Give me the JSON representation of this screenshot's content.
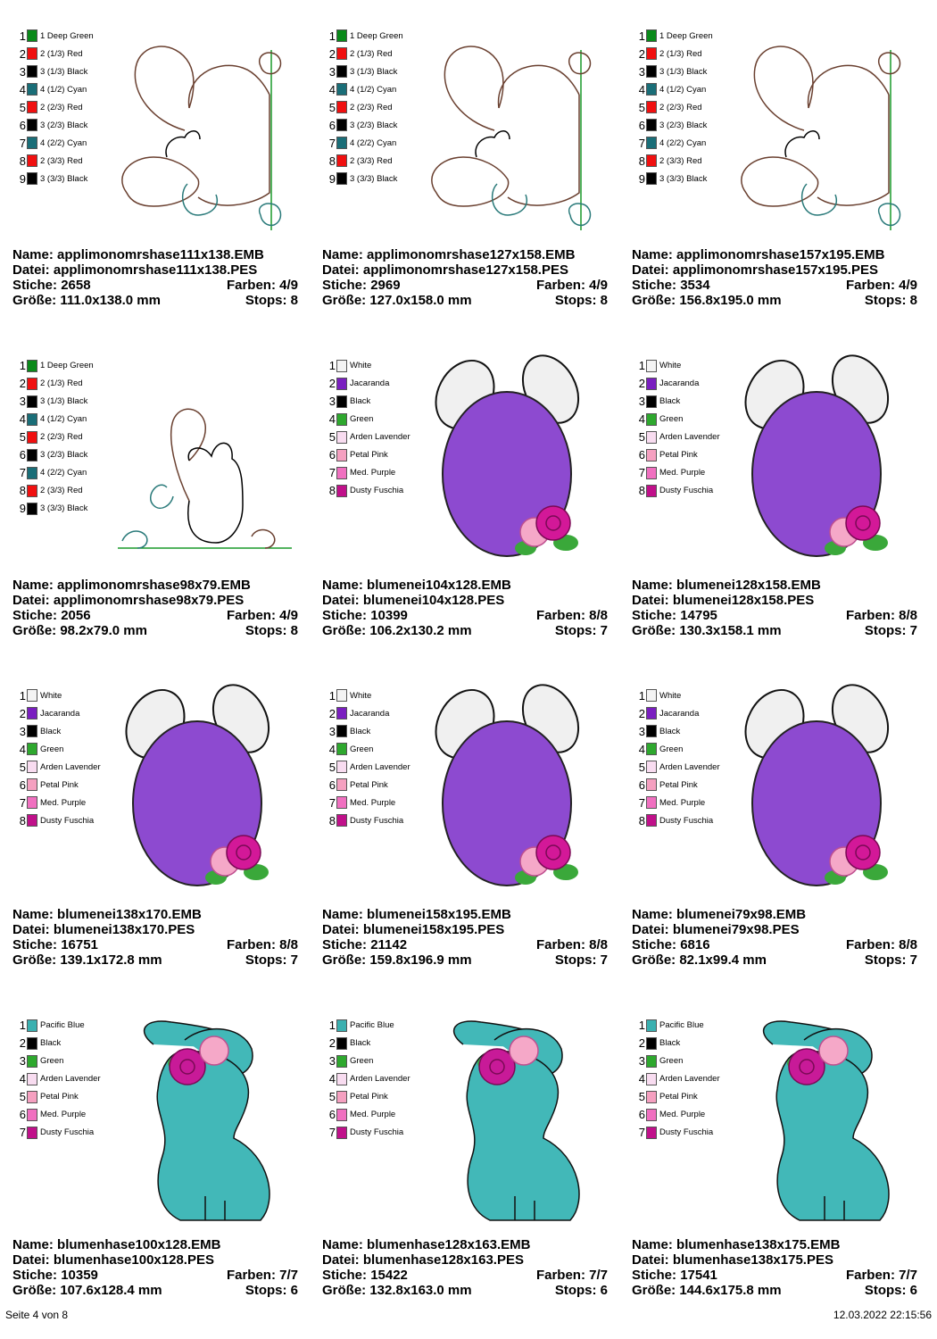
{
  "labels": {
    "name": "Name:",
    "file": "Datei:",
    "stitches": "Stiche:",
    "colors": "Farben:",
    "size": "Größe:",
    "stops": "Stops:"
  },
  "palettes": {
    "hase": [
      {
        "num": "1",
        "label": "1 Deep Green",
        "color": "#0a8a1a"
      },
      {
        "num": "2",
        "label": "2 (1/3) Red",
        "color": "#f01010"
      },
      {
        "num": "3",
        "label": "3 (1/3) Black",
        "color": "#000000"
      },
      {
        "num": "4",
        "label": "4 (1/2) Cyan",
        "color": "#1a6e78"
      },
      {
        "num": "5",
        "label": "2 (2/3) Red",
        "color": "#f01010"
      },
      {
        "num": "6",
        "label": "3 (2/3) Black",
        "color": "#000000"
      },
      {
        "num": "7",
        "label": "4 (2/2) Cyan",
        "color": "#1a6e78"
      },
      {
        "num": "8",
        "label": "2 (3/3) Red",
        "color": "#f01010"
      },
      {
        "num": "9",
        "label": "3 (3/3) Black",
        "color": "#000000"
      }
    ],
    "ei": [
      {
        "num": "1",
        "label": "White",
        "color": "#f4f4f4"
      },
      {
        "num": "2",
        "label": "Jacaranda",
        "color": "#7a1fc0"
      },
      {
        "num": "3",
        "label": "Black",
        "color": "#000000"
      },
      {
        "num": "4",
        "label": "Green",
        "color": "#2ea82e"
      },
      {
        "num": "5",
        "label": "Arden Lavender",
        "color": "#f8dcf0"
      },
      {
        "num": "6",
        "label": "Petal Pink",
        "color": "#f5a0c0"
      },
      {
        "num": "7",
        "label": "Med. Purple",
        "color": "#f070c0"
      },
      {
        "num": "8",
        "label": "Dusty Fuschia",
        "color": "#c0108a"
      }
    ],
    "blumenhase": [
      {
        "num": "1",
        "label": "Pacific Blue",
        "color": "#3ab0b0"
      },
      {
        "num": "2",
        "label": "Black",
        "color": "#000000"
      },
      {
        "num": "3",
        "label": "Green",
        "color": "#2ea82e"
      },
      {
        "num": "4",
        "label": "Arden Lavender",
        "color": "#f8dcf0"
      },
      {
        "num": "5",
        "label": "Petal Pink",
        "color": "#f5a0c0"
      },
      {
        "num": "6",
        "label": "Med. Purple",
        "color": "#f070c0"
      },
      {
        "num": "7",
        "label": "Dusty Fuschia",
        "color": "#c0108a"
      }
    ]
  },
  "designs": [
    {
      "art": "hase-right",
      "palette": "hase",
      "name": "applimonomrshase111x138.EMB",
      "file": "applimonomrshase111x138.PES",
      "stitches": "2658",
      "colors": "4/9",
      "size": "111.0x138.0 mm",
      "stops": "8"
    },
    {
      "art": "hase-right",
      "palette": "hase",
      "name": "applimonomrshase127x158.EMB",
      "file": "applimonomrshase127x158.PES",
      "stitches": "2969",
      "colors": "4/9",
      "size": "127.0x158.0 mm",
      "stops": "8"
    },
    {
      "art": "hase-right",
      "palette": "hase",
      "name": "applimonomrshase157x195.EMB",
      "file": "applimonomrshase157x195.PES",
      "stitches": "3534",
      "colors": "4/9",
      "size": "156.8x195.0 mm",
      "stops": "8"
    },
    {
      "art": "hase-bottom",
      "palette": "hase",
      "name": "applimonomrshase98x79.EMB",
      "file": "applimonomrshase98x79.PES",
      "stitches": "2056",
      "colors": "4/9",
      "size": "98.2x79.0 mm",
      "stops": "8"
    },
    {
      "art": "egg",
      "palette": "ei",
      "name": "blumenei104x128.EMB",
      "file": "blumenei104x128.PES",
      "stitches": "10399",
      "colors": "8/8",
      "size": "106.2x130.2 mm",
      "stops": "7"
    },
    {
      "art": "egg",
      "palette": "ei",
      "name": "blumenei128x158.EMB",
      "file": "blumenei128x158.PES",
      "stitches": "14795",
      "colors": "8/8",
      "size": "130.3x158.1 mm",
      "stops": "7"
    },
    {
      "art": "egg",
      "palette": "ei",
      "name": "blumenei138x170.EMB",
      "file": "blumenei138x170.PES",
      "stitches": "16751",
      "colors": "8/8",
      "size": "139.1x172.8 mm",
      "stops": "7"
    },
    {
      "art": "egg",
      "palette": "ei",
      "name": "blumenei158x195.EMB",
      "file": "blumenei158x195.PES",
      "stitches": "21142",
      "colors": "8/8",
      "size": "159.8x196.9 mm",
      "stops": "7"
    },
    {
      "art": "egg",
      "palette": "ei",
      "name": "blumenei79x98.EMB",
      "file": "blumenei79x98.PES",
      "stitches": "6816",
      "colors": "8/8",
      "size": "82.1x99.4 mm",
      "stops": "7"
    },
    {
      "art": "bunny",
      "palette": "blumenhase",
      "name": "blumenhase100x128.EMB",
      "file": "blumenhase100x128.PES",
      "stitches": "10359",
      "colors": "7/7",
      "size": "107.6x128.4 mm",
      "stops": "6"
    },
    {
      "art": "bunny",
      "palette": "blumenhase",
      "name": "blumenhase128x163.EMB",
      "file": "blumenhase128x163.PES",
      "stitches": "15422",
      "colors": "7/7",
      "size": "132.8x163.0 mm",
      "stops": "6"
    },
    {
      "art": "bunny",
      "palette": "blumenhase",
      "name": "blumenhase138x175.EMB",
      "file": "blumenhase138x175.PES",
      "stitches": "17541",
      "colors": "7/7",
      "size": "144.6x175.8 mm",
      "stops": "6"
    }
  ],
  "footer": {
    "page": "Seite 4 von 8",
    "datetime": "12.03.2022 22:15:56"
  }
}
